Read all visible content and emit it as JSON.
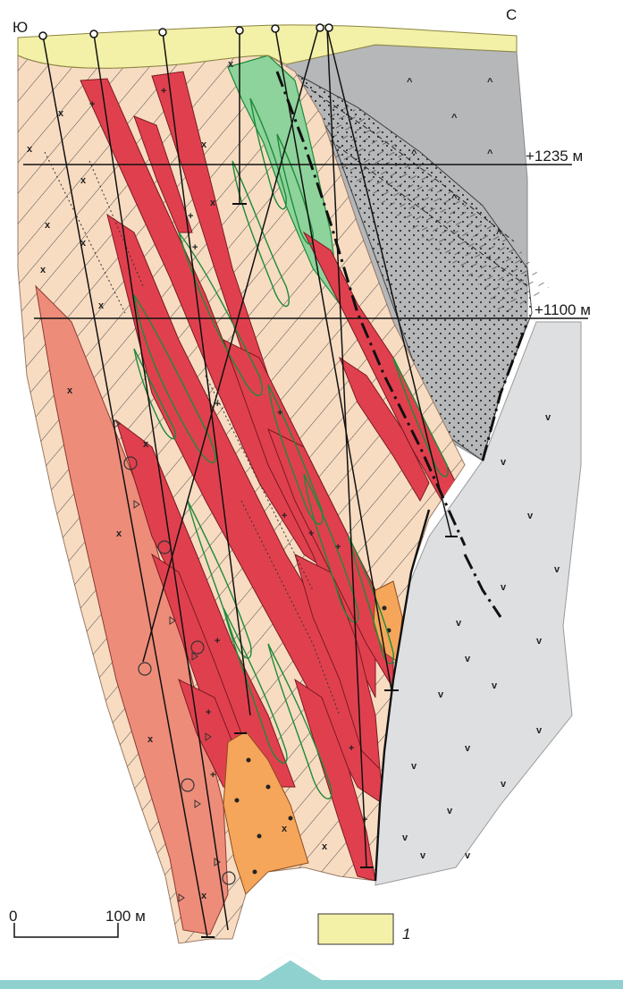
{
  "labels": {
    "south": "Ю",
    "north": "С",
    "level_upper": "+1235 м",
    "level_lower": "+1100 м"
  },
  "scale_bar": {
    "zero": "0",
    "distance": "100 м"
  },
  "legend": {
    "item_1": "1"
  },
  "colors": {
    "soil_cover": "#f3f0a8",
    "host_rock": "#f7dcc2",
    "granite_dikes": "#e0404e",
    "salmon_intrusion": "#ee8c7a",
    "orange_intrusion": "#f5a65b",
    "green_zone": "#8ed39c",
    "dark_block": "#b6b7b9",
    "light_block": "#dedfe1",
    "green_contour": "#1f8a3a",
    "bottom_banner": "#8fd1cf"
  },
  "icons": {
    "drillhole": "drillhole-collar-icon",
    "terminal": "drillhole-terminal-icon"
  }
}
